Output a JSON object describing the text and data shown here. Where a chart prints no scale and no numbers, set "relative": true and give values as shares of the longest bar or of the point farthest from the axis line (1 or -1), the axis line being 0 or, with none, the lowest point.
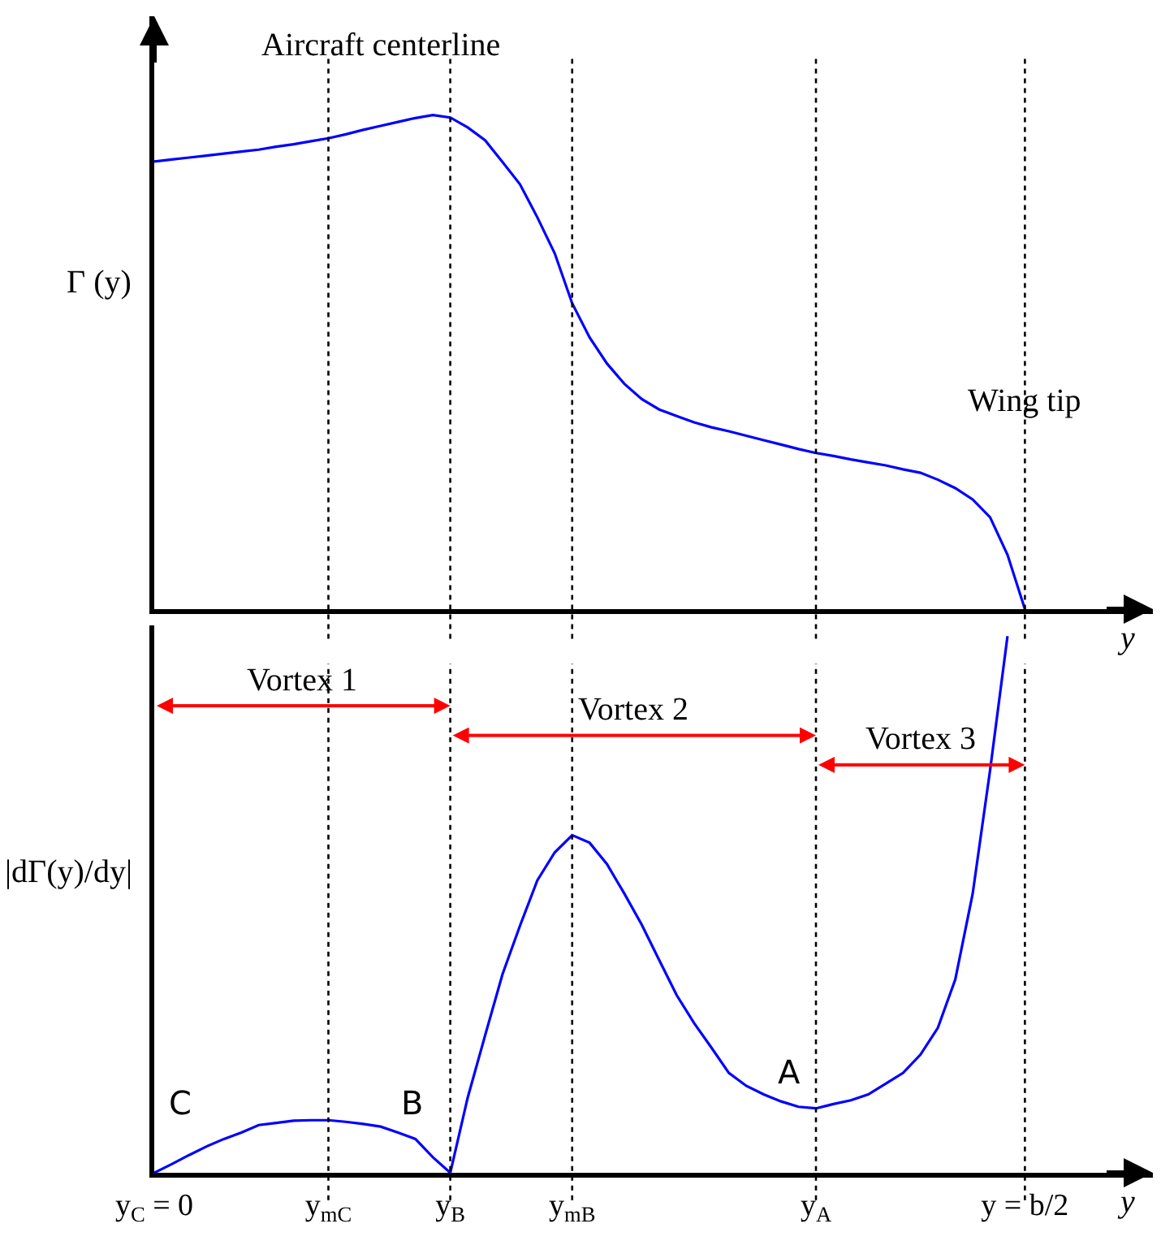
{
  "chart_data": [
    {
      "type": "line",
      "relative": true,
      "tick_labels": false,
      "xlabel": "y",
      "ylabel": "Γ (y)",
      "line_style": "solid",
      "marker": "none",
      "grid": false,
      "categories": [
        "y$_{C}$ = 0",
        null,
        null,
        null,
        null,
        null,
        null,
        null,
        null,
        null,
        "y$_{mC}$",
        null,
        null,
        null,
        null,
        null,
        null,
        "y$_{B}$",
        null,
        null,
        null,
        null,
        null,
        null,
        "y$_{mB}$",
        null,
        null,
        null,
        null,
        null,
        null,
        null,
        null,
        null,
        null,
        null,
        null,
        null,
        "y$_{A}$",
        null,
        null,
        null,
        null,
        null,
        null,
        null,
        null,
        null,
        null,
        null,
        "y = b/2"
      ],
      "series": [
        {
          "color": "#0000ff",
          "values": [
            0.906,
            0.91,
            0.914,
            0.918,
            0.922,
            0.926,
            0.93,
            0.936,
            0.941,
            0.947,
            0.953,
            0.961,
            0.97,
            0.978,
            0.986,
            0.994,
            1,
            0.995,
            0.975,
            0.949,
            0.905,
            0.86,
            0.793,
            0.72,
            0.619,
            0.55,
            0.497,
            0.456,
            0.425,
            0.404,
            0.391,
            0.378,
            0.368,
            0.36,
            0.351,
            0.342,
            0.333,
            0.324,
            0.316,
            0.31,
            0.303,
            0.297,
            0.291,
            0.283,
            0.276,
            0.262,
            0.245,
            0.222,
            0.186,
            0.11,
            0
          ]
        }
      ],
      "ref_lines": [
        {
          "axis": "x",
          "value": "y$_{mC}$",
          "color": "#000000",
          "line_style": "dotted"
        },
        {
          "axis": "x",
          "value": "y$_{B}$",
          "color": "#000000",
          "line_style": "dotted"
        },
        {
          "axis": "x",
          "value": "y$_{mB}$",
          "color": "#000000",
          "line_style": "dotted"
        },
        {
          "axis": "x",
          "value": "y$_{A}$",
          "color": "#000000",
          "line_style": "dotted"
        },
        {
          "axis": "x",
          "value": "y = b/2",
          "color": "#000000",
          "line_style": "dotted"
        }
      ],
      "annotations": [
        "Aircraft centerline",
        "Wing tip"
      ]
    },
    {
      "type": "line",
      "relative": true,
      "tick_labels": "x",
      "xlabel": "y",
      "ylabel": "|dΓ(y)/dy|",
      "line_style": "solid",
      "marker": "none",
      "grid": false,
      "categories": [
        "y$_{C}$ = 0",
        null,
        null,
        null,
        null,
        null,
        null,
        null,
        null,
        null,
        "y$_{mC}$",
        null,
        null,
        null,
        null,
        null,
        null,
        "y$_{B}$",
        null,
        null,
        null,
        null,
        null,
        null,
        "y$_{mB}$",
        null,
        null,
        null,
        null,
        null,
        null,
        null,
        null,
        null,
        null,
        null,
        null,
        null,
        "y$_{A}$",
        null,
        null,
        null,
        null,
        null,
        null,
        null,
        null,
        null,
        null,
        null,
        "y = b/2"
      ],
      "series": [
        {
          "color": "#0000ff",
          "values": [
            0,
            0.016,
            0.033,
            0.049,
            0.063,
            0.075,
            0.089,
            0.093,
            0.097,
            0.098,
            0.098,
            0.095,
            0.091,
            0.086,
            0.075,
            0.063,
            0.029,
            0,
            0.14,
            0.256,
            0.37,
            0.46,
            0.545,
            0.597,
            0.629,
            0.615,
            0.575,
            0.52,
            0.462,
            0.396,
            0.331,
            0.279,
            0.233,
            0.186,
            0.162,
            0.146,
            0.133,
            0.123,
            0.12,
            0.128,
            0.135,
            0.146,
            0.166,
            0.186,
            0.22,
            0.27,
            0.36,
            0.52,
            0.75,
            1,
            null
          ]
        }
      ],
      "ref_lines": [
        {
          "axis": "x",
          "value": "y$_{mC}$",
          "color": "#000000",
          "line_style": "dotted"
        },
        {
          "axis": "x",
          "value": "y$_{B}$",
          "color": "#000000",
          "line_style": "dotted"
        },
        {
          "axis": "x",
          "value": "y$_{mB}$",
          "color": "#000000",
          "line_style": "dotted"
        },
        {
          "axis": "x",
          "value": "y$_{A}$",
          "color": "#000000",
          "line_style": "dotted"
        },
        {
          "axis": "x",
          "value": "y = b/2",
          "color": "#000000",
          "line_style": "dotted"
        }
      ],
      "annotations": [
        "Vortex 1",
        "Vortex 2",
        "Vortex 3",
        "C",
        "B",
        "A"
      ]
    }
  ]
}
